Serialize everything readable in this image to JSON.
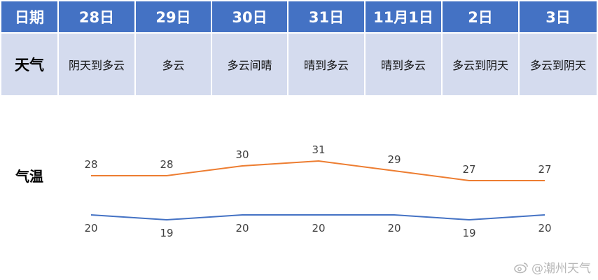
{
  "table": {
    "date_header": "日期",
    "weather_header": "天气",
    "dates": [
      "28日",
      "29日",
      "30日",
      "31日",
      "11月1日",
      "2日",
      "3日"
    ],
    "weather": [
      "阴天到多云",
      "多云",
      "多云间晴",
      "晴到多云",
      "晴到多云",
      "多云到阴天",
      "多云到阴天"
    ]
  },
  "temp_label": "气温",
  "chart_data": {
    "type": "line",
    "categories": [
      "28日",
      "29日",
      "30日",
      "31日",
      "11月1日",
      "2日",
      "3日"
    ],
    "series": [
      {
        "values": [
          28,
          28,
          30,
          31,
          29,
          27,
          27
        ],
        "color": "#ed7d31"
      },
      {
        "values": [
          20,
          19,
          20,
          20,
          20,
          19,
          20
        ],
        "color": "#4472c4"
      }
    ]
  },
  "watermark": "@潮州天气",
  "watermark_icon": "weibo-icon"
}
